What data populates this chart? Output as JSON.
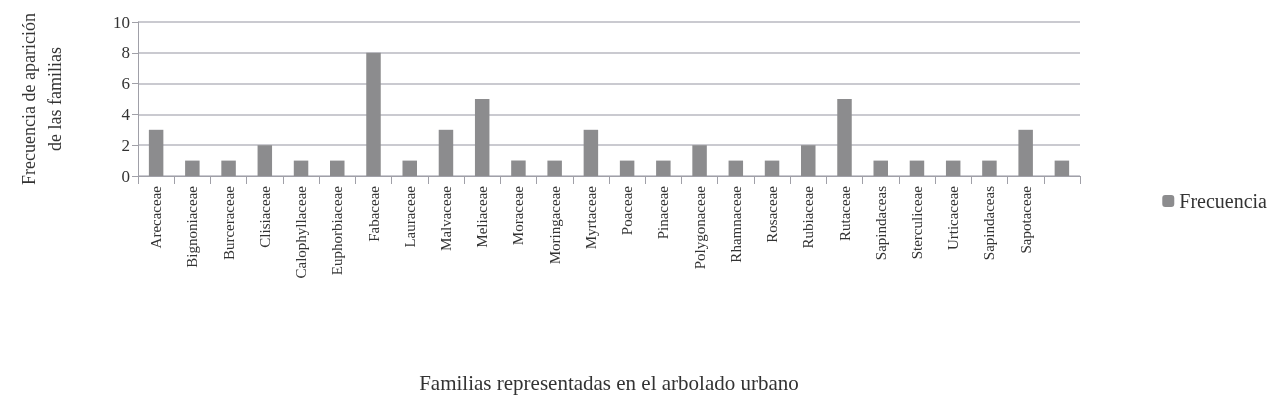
{
  "chart_data": {
    "type": "bar",
    "xlabel": "Familias representadas en el arbolado urbano",
    "ylabel": "Frecuencia de aparición de las familias",
    "categories": [
      "Arecaceae",
      "Bignoniaceae",
      "Burceraceae",
      "Clisiaceae",
      "Calophyllaceae",
      "Euphorbiaceae",
      "Fabaceae",
      "Lauraceae",
      "Malvaceae",
      "Meliaceae",
      "Moraceae",
      "Moringaceae",
      "Myrtaceae",
      "Poaceae",
      "Pinaceae",
      "Polygonaceae",
      "Rhamnaceae",
      "Rosaceae",
      "Rubiaceae",
      "Rutaceae",
      "Sapindaceas",
      "Sterculiceae",
      "Urticaceae",
      "Sapindaceas",
      "Sapotaceae",
      null
    ],
    "series": [
      {
        "name": "Frecuencia",
        "color": "#8c8c8e",
        "values": [
          3,
          1,
          1,
          2,
          1,
          1,
          8,
          1,
          3,
          5,
          1,
          1,
          3,
          1,
          1,
          2,
          1,
          1,
          2,
          5,
          1,
          1,
          1,
          1,
          3,
          1
        ]
      }
    ],
    "ylim": [
      0,
      10
    ],
    "yticks": [
      0,
      2,
      4,
      6,
      8,
      10
    ],
    "grid": "y",
    "legend": "right"
  }
}
